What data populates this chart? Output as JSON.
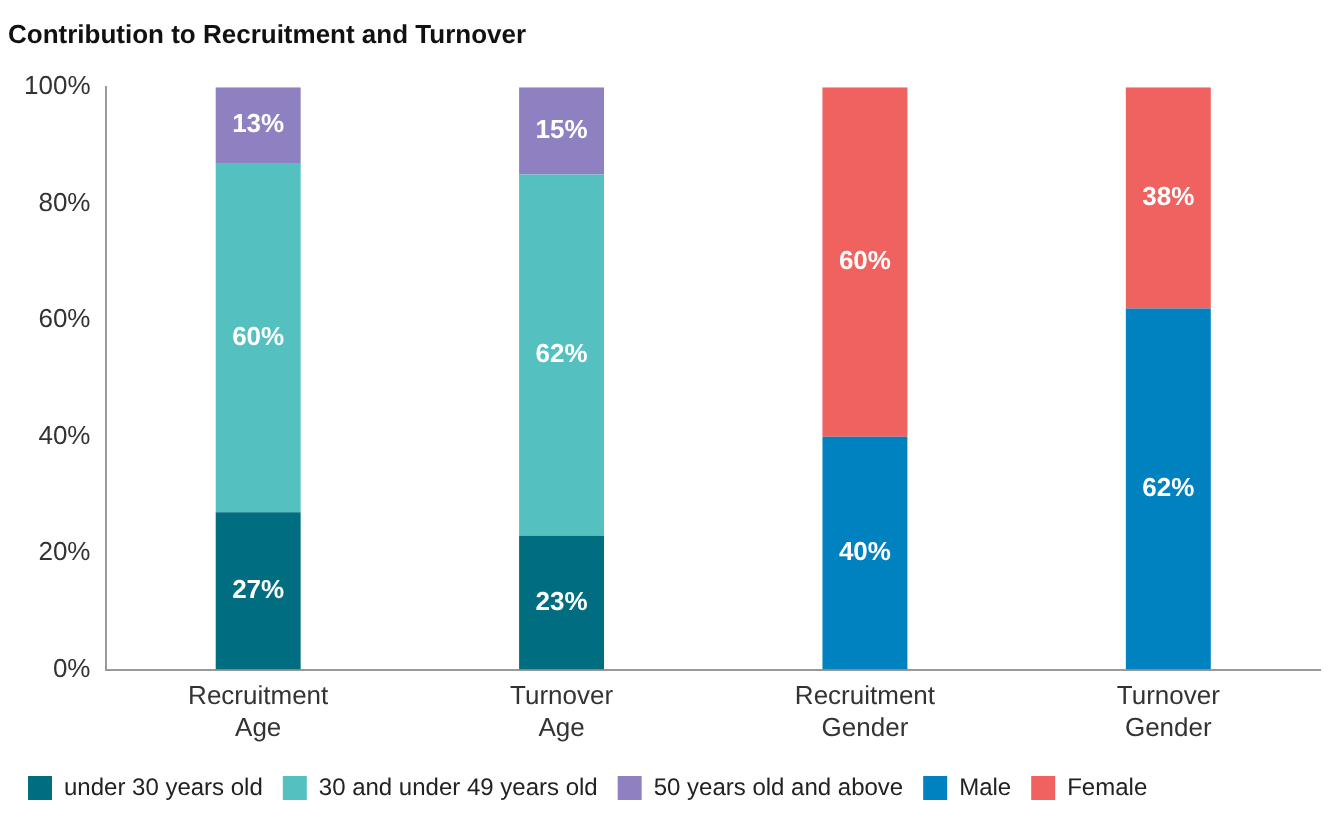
{
  "chart_data": {
    "type": "bar",
    "title": "Contribution to Recruitment and Turnover",
    "stacked": true,
    "categories": [
      "Recruitment Age",
      "Turnover Age",
      "Recruitment Gender",
      "Turnover Gender"
    ],
    "series": [
      {
        "name": "under 30 years old",
        "color": "#006e80",
        "values": [
          27,
          23,
          null,
          null
        ],
        "value_labels": [
          "27%",
          "23%",
          null,
          null
        ]
      },
      {
        "name": "30 and under 49 years old",
        "color": "#54c0c0",
        "values": [
          60,
          62,
          null,
          null
        ],
        "value_labels": [
          "60%",
          "62%",
          null,
          null
        ]
      },
      {
        "name": "50 years old and above",
        "color": "#8f80c2",
        "values": [
          13,
          15,
          null,
          null
        ],
        "value_labels": [
          "13%",
          "15%",
          null,
          null
        ]
      },
      {
        "name": "Male",
        "color": "#0082c0",
        "values": [
          null,
          null,
          40,
          62
        ],
        "value_labels": [
          null,
          null,
          "40%",
          "62%"
        ]
      },
      {
        "name": "Female",
        "color": "#f0625f",
        "values": [
          null,
          null,
          60,
          38
        ],
        "value_labels": [
          null,
          null,
          "60%",
          "38%"
        ]
      }
    ],
    "ylim": [
      0,
      100
    ],
    "yticks": [
      {
        "value": 0,
        "label": "0%"
      },
      {
        "value": 20,
        "label": "20%"
      },
      {
        "value": 40,
        "label": "40%"
      },
      {
        "value": 60,
        "label": "60%"
      },
      {
        "value": 80,
        "label": "80%"
      },
      {
        "value": 100,
        "label": "100%"
      }
    ],
    "grid": false,
    "legend": "bottom"
  }
}
